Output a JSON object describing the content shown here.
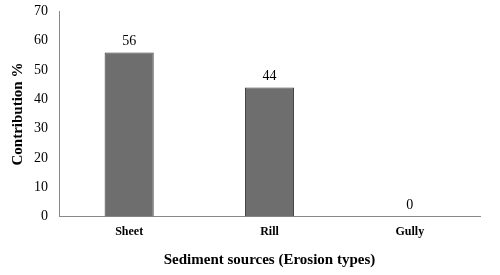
{
  "chart_data": {
    "type": "bar",
    "categories": [
      "Sheet",
      "Rill",
      "Gully"
    ],
    "values": [
      56,
      44,
      0
    ],
    "color": "#6e6e6e",
    "xlabel": "Sediment sources (Erosion types)",
    "ylabel": "Contribution %",
    "ylim": [
      0,
      70
    ],
    "yticks": [
      0,
      10,
      20,
      30,
      40,
      50,
      60,
      70
    ],
    "grid": false,
    "data_labels": true
  }
}
